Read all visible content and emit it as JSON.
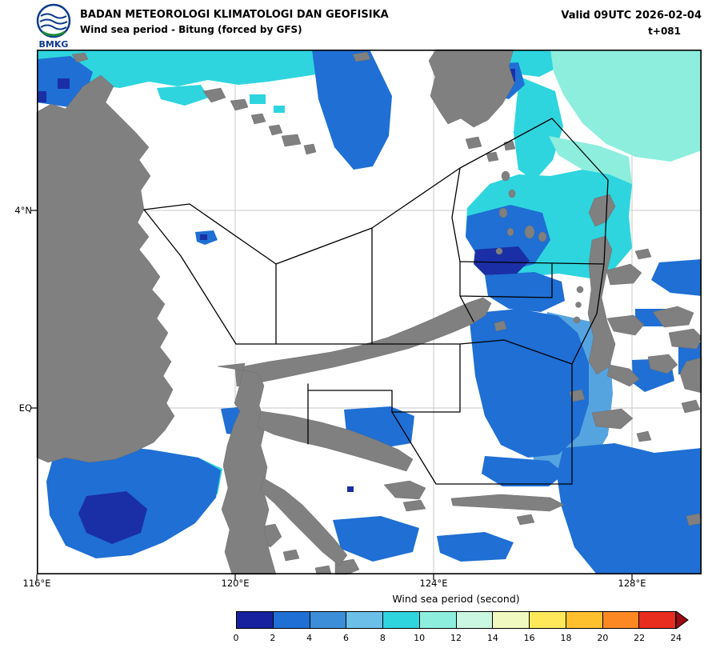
{
  "header": {
    "logo_text": "BMKG",
    "agency": "BADAN METEOROLOGI KLIMATOLOGI DAN GEOFISIKA",
    "product": "Wind sea period - Bitung (forced by GFS)",
    "valid": "Valid 09UTC 2026-02-04",
    "tstep": "t+081"
  },
  "axes": {
    "x_labels": [
      "116°E",
      "120°E",
      "124°E",
      "128°E"
    ],
    "y_labels": [
      "4°N",
      "EQ"
    ]
  },
  "colorbar": {
    "title": "Wind sea period (second)",
    "ticks": [
      0,
      2,
      4,
      6,
      8,
      10,
      12,
      14,
      16,
      18,
      20,
      22,
      24
    ],
    "segment_colors": [
      "#18229e",
      "#1f6fd4",
      "#3c8ed8",
      "#6cc0e8",
      "#2ed5de",
      "#8deedd",
      "#c9f7e2",
      "#f0fac0",
      "#ffe95a",
      "#ffc02e",
      "#fb8822",
      "#e82c1e"
    ],
    "arrow_color": "#990d12"
  },
  "palette": {
    "land": "#808080",
    "landEdge": "#6e6e6e",
    "grid": "#c8c8c8",
    "p02": "#1a2fa6",
    "p24": "#1f6fd4",
    "p46": "#55a4e0",
    "p810": "#2ed5de",
    "p1012": "#8deedd"
  }
}
